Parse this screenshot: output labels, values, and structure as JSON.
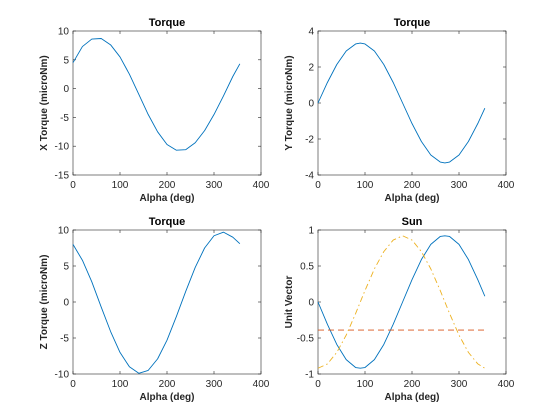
{
  "chart_data": [
    {
      "type": "line",
      "title": "Torque",
      "xlabel": "Alpha (deg)",
      "ylabel": "X Torque (microNm)",
      "xlim": [
        0,
        400
      ],
      "ylim": [
        -15,
        10
      ],
      "xticks": [
        "0",
        "100",
        "200",
        "300",
        "400"
      ],
      "yticks": [
        "-15",
        "-10",
        "-5",
        "0",
        "5",
        "10"
      ],
      "grid": false,
      "series": [
        {
          "color": "#0072BD",
          "style": "solid",
          "x": [
            0,
            20,
            40,
            60,
            80,
            100,
            120,
            140,
            160,
            180,
            200,
            220,
            240,
            260,
            280,
            300,
            320,
            340,
            355
          ],
          "y": [
            4.5,
            7.3,
            8.6,
            8.7,
            7.6,
            5.5,
            2.5,
            -1.0,
            -4.5,
            -7.5,
            -9.7,
            -10.7,
            -10.6,
            -9.4,
            -7.3,
            -4.5,
            -1.3,
            2.1,
            4.3
          ]
        }
      ]
    },
    {
      "type": "line",
      "title": "Torque",
      "xlabel": "Alpha (deg)",
      "ylabel": "Y Torque (microNm)",
      "xlim": [
        0,
        400
      ],
      "ylim": [
        -4,
        4
      ],
      "xticks": [
        "0",
        "100",
        "200",
        "300",
        "400"
      ],
      "yticks": [
        "-4",
        "-2",
        "0",
        "2",
        "4"
      ],
      "grid": false,
      "series": [
        {
          "color": "#0072BD",
          "style": "solid",
          "x": [
            0,
            20,
            40,
            60,
            80,
            90,
            100,
            120,
            140,
            160,
            180,
            200,
            220,
            240,
            260,
            270,
            280,
            300,
            320,
            340,
            355
          ],
          "y": [
            0.0,
            1.14,
            2.14,
            2.89,
            3.28,
            3.33,
            3.28,
            2.89,
            2.14,
            1.14,
            0.0,
            -1.14,
            -2.14,
            -2.89,
            -3.28,
            -3.33,
            -3.28,
            -2.89,
            -2.14,
            -1.14,
            -0.29
          ]
        }
      ]
    },
    {
      "type": "line",
      "title": "Torque",
      "xlabel": "Alpha (deg)",
      "ylabel": "Z Torque (microNm)",
      "xlim": [
        0,
        400
      ],
      "ylim": [
        -10,
        10
      ],
      "xticks": [
        "0",
        "100",
        "200",
        "300",
        "400"
      ],
      "yticks": [
        "-10",
        "-5",
        "0",
        "5",
        "10"
      ],
      "grid": false,
      "series": [
        {
          "color": "#0072BD",
          "style": "solid",
          "x": [
            0,
            20,
            40,
            60,
            80,
            100,
            120,
            140,
            160,
            180,
            200,
            220,
            240,
            260,
            280,
            300,
            320,
            340,
            355
          ],
          "y": [
            8.0,
            5.8,
            2.8,
            -0.7,
            -4.1,
            -7.0,
            -9.0,
            -9.9,
            -9.5,
            -7.9,
            -5.3,
            -2.0,
            1.5,
            4.8,
            7.5,
            9.2,
            9.7,
            9.0,
            8.1
          ]
        }
      ]
    },
    {
      "type": "line",
      "title": "Sun",
      "xlabel": "Alpha (deg)",
      "ylabel": "Unit Vector",
      "xlim": [
        0,
        400
      ],
      "ylim": [
        -1,
        1
      ],
      "xticks": [
        "0",
        "100",
        "200",
        "300",
        "400"
      ],
      "yticks": [
        "-1",
        "-0.5",
        "0",
        "0.5",
        "1"
      ],
      "grid": false,
      "series": [
        {
          "color": "#0072BD",
          "style": "solid",
          "x": [
            0,
            20,
            40,
            60,
            80,
            90,
            100,
            120,
            140,
            160,
            180,
            200,
            220,
            240,
            260,
            270,
            280,
            300,
            320,
            340,
            355
          ],
          "y": [
            0.0,
            -0.31,
            -0.59,
            -0.8,
            -0.91,
            -0.92,
            -0.91,
            -0.8,
            -0.59,
            -0.31,
            0.0,
            0.31,
            0.59,
            0.8,
            0.91,
            0.92,
            0.91,
            0.8,
            0.59,
            0.31,
            0.08
          ]
        },
        {
          "color": "#D95319",
          "style": "dashed",
          "x": [
            0,
            355
          ],
          "y": [
            -0.39,
            -0.39
          ]
        },
        {
          "color": "#EDB120",
          "style": "dashdot",
          "x": [
            0,
            20,
            40,
            60,
            80,
            100,
            120,
            140,
            160,
            180,
            200,
            220,
            240,
            260,
            280,
            300,
            320,
            340,
            355
          ],
          "y": [
            -0.92,
            -0.86,
            -0.7,
            -0.46,
            -0.16,
            0.16,
            0.46,
            0.7,
            0.86,
            0.92,
            0.86,
            0.7,
            0.46,
            0.16,
            -0.16,
            -0.46,
            -0.7,
            -0.86,
            -0.92
          ]
        }
      ]
    }
  ]
}
